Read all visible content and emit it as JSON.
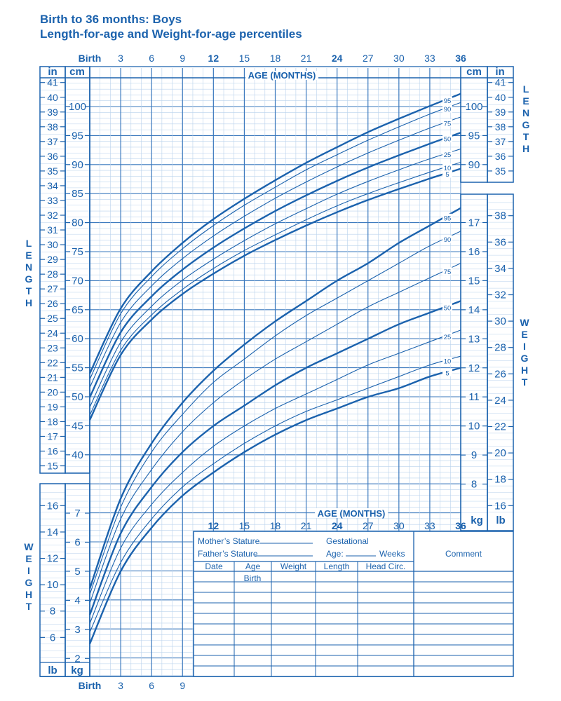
{
  "title": {
    "line1": "Birth to 36 months: Boys",
    "line2": "Length-for-age and Weight-for-age percentiles"
  },
  "colors": {
    "primary": "#1b62ad",
    "grid_major": "#3a78bd",
    "grid_minor": "#b9d2ec"
  },
  "chart_data": {
    "type": "line",
    "x_label": "AGE (MONTHS)",
    "x_range": [
      0,
      36
    ],
    "x_ticks_top": [
      "Birth",
      "3",
      "6",
      "9",
      "12",
      "15",
      "18",
      "21",
      "24",
      "27",
      "30",
      "33",
      "36"
    ],
    "x_ticks_bottom_left": [
      "Birth",
      "3",
      "6",
      "9"
    ],
    "x_ticks_bottom_right": [
      "12",
      "15",
      "18",
      "21",
      "24",
      "27",
      "30",
      "33",
      "36"
    ],
    "grid": true,
    "x": [
      0,
      3,
      6,
      9,
      12,
      15,
      18,
      21,
      24,
      27,
      30,
      33,
      36
    ],
    "percentiles": [
      "5",
      "10",
      "25",
      "50",
      "75",
      "90",
      "95"
    ],
    "bold_percentiles": [
      "5",
      "50",
      "95"
    ],
    "length": {
      "label": "LENGTH",
      "unit_cm": "cm",
      "unit_in": "in",
      "cm_ticks": [
        "40",
        "45",
        "50",
        "55",
        "60",
        "65",
        "70",
        "75",
        "80",
        "85",
        "90",
        "95",
        "100"
      ],
      "in_ticks_left": [
        "15",
        "16",
        "17",
        "18",
        "19",
        "20",
        "21",
        "22",
        "23",
        "24",
        "25",
        "26",
        "27",
        "28",
        "29",
        "30",
        "31",
        "32",
        "33",
        "34",
        "35",
        "36",
        "37",
        "38",
        "39",
        "40",
        "41"
      ],
      "in_ticks_right": [
        "35",
        "36",
        "37",
        "38",
        "39",
        "40",
        "41"
      ],
      "cm_ticks_right": [
        "90",
        "95",
        "100"
      ],
      "series": [
        {
          "name": "5",
          "values": [
            46.0,
            57.2,
            63.3,
            67.7,
            71.2,
            74.3,
            77.0,
            79.5,
            81.8,
            83.9,
            85.8,
            87.6,
            89.3
          ]
        },
        {
          "name": "10",
          "values": [
            46.8,
            58.0,
            64.1,
            68.5,
            72.1,
            75.2,
            77.9,
            80.5,
            82.9,
            85.0,
            86.9,
            88.7,
            90.4
          ]
        },
        {
          "name": "25",
          "values": [
            48.2,
            59.4,
            65.6,
            70.1,
            73.7,
            76.9,
            79.8,
            82.4,
            84.9,
            87.1,
            89.1,
            91.0,
            92.7
          ]
        },
        {
          "name": "50",
          "values": [
            49.9,
            61.1,
            67.3,
            71.9,
            75.7,
            79.0,
            82.0,
            84.7,
            87.2,
            89.5,
            91.6,
            93.6,
            95.5
          ]
        },
        {
          "name": "75",
          "values": [
            51.6,
            62.8,
            69.1,
            73.8,
            77.7,
            81.1,
            84.2,
            87.0,
            89.6,
            92.0,
            94.2,
            96.3,
            98.2
          ]
        },
        {
          "name": "90",
          "values": [
            53.0,
            64.3,
            70.7,
            75.5,
            79.5,
            83.0,
            86.1,
            89.1,
            91.7,
            94.2,
            96.5,
            98.7,
            100.7
          ]
        },
        {
          "name": "95",
          "values": [
            54.0,
            65.2,
            71.6,
            76.5,
            80.6,
            84.1,
            87.3,
            90.3,
            93.0,
            95.6,
            97.9,
            100.1,
            102.2
          ]
        }
      ]
    },
    "weight": {
      "label": "WEIGHT",
      "unit_kg": "kg",
      "unit_lb": "lb",
      "kg_ticks_left": [
        "2",
        "3",
        "4",
        "5",
        "6",
        "7"
      ],
      "kg_ticks_right": [
        "8",
        "9",
        "10",
        "11",
        "12",
        "13",
        "14",
        "15",
        "16",
        "17"
      ],
      "lb_ticks_left": [
        "6",
        "8",
        "10",
        "12",
        "14",
        "16"
      ],
      "lb_ticks_right": [
        "16",
        "18",
        "20",
        "22",
        "24",
        "26",
        "28",
        "30",
        "32",
        "34",
        "36",
        "38"
      ],
      "series": [
        {
          "name": "5",
          "values": [
            2.5,
            5.0,
            6.5,
            7.6,
            8.4,
            9.1,
            9.7,
            10.2,
            10.6,
            11.0,
            11.3,
            11.7,
            12.0
          ]
        },
        {
          "name": "10",
          "values": [
            2.9,
            5.3,
            6.8,
            7.9,
            8.7,
            9.4,
            10.0,
            10.5,
            10.9,
            11.3,
            11.7,
            12.1,
            12.4
          ]
        },
        {
          "name": "25",
          "values": [
            3.2,
            5.8,
            7.3,
            8.4,
            9.3,
            10.0,
            10.6,
            11.1,
            11.6,
            12.1,
            12.5,
            12.9,
            13.3
          ]
        },
        {
          "name": "50",
          "values": [
            3.5,
            6.3,
            7.9,
            9.1,
            10.0,
            10.7,
            11.4,
            12.0,
            12.5,
            13.0,
            13.5,
            13.9,
            14.3
          ]
        },
        {
          "name": "75",
          "values": [
            3.9,
            6.8,
            8.5,
            9.8,
            10.8,
            11.6,
            12.3,
            12.9,
            13.5,
            14.1,
            14.6,
            15.1,
            15.6
          ]
        },
        {
          "name": "90",
          "values": [
            4.2,
            7.2,
            9.1,
            10.4,
            11.5,
            12.3,
            13.1,
            13.8,
            14.4,
            15.0,
            15.6,
            16.2,
            16.7
          ]
        },
        {
          "name": "95",
          "values": [
            4.4,
            7.5,
            9.4,
            10.8,
            11.9,
            12.8,
            13.6,
            14.3,
            15.0,
            15.6,
            16.3,
            16.9,
            17.5
          ]
        }
      ]
    }
  },
  "record_table": {
    "mothers_stature": "Mother’s Stature",
    "fathers_stature": "Father’s Stature",
    "gestational": "Gestational",
    "age_label": "Age:",
    "weeks": "Weeks",
    "comment": "Comment",
    "columns": [
      "Date",
      "Age",
      "Weight",
      "Length",
      "Head  Circ."
    ],
    "first_row_age": "Birth"
  }
}
